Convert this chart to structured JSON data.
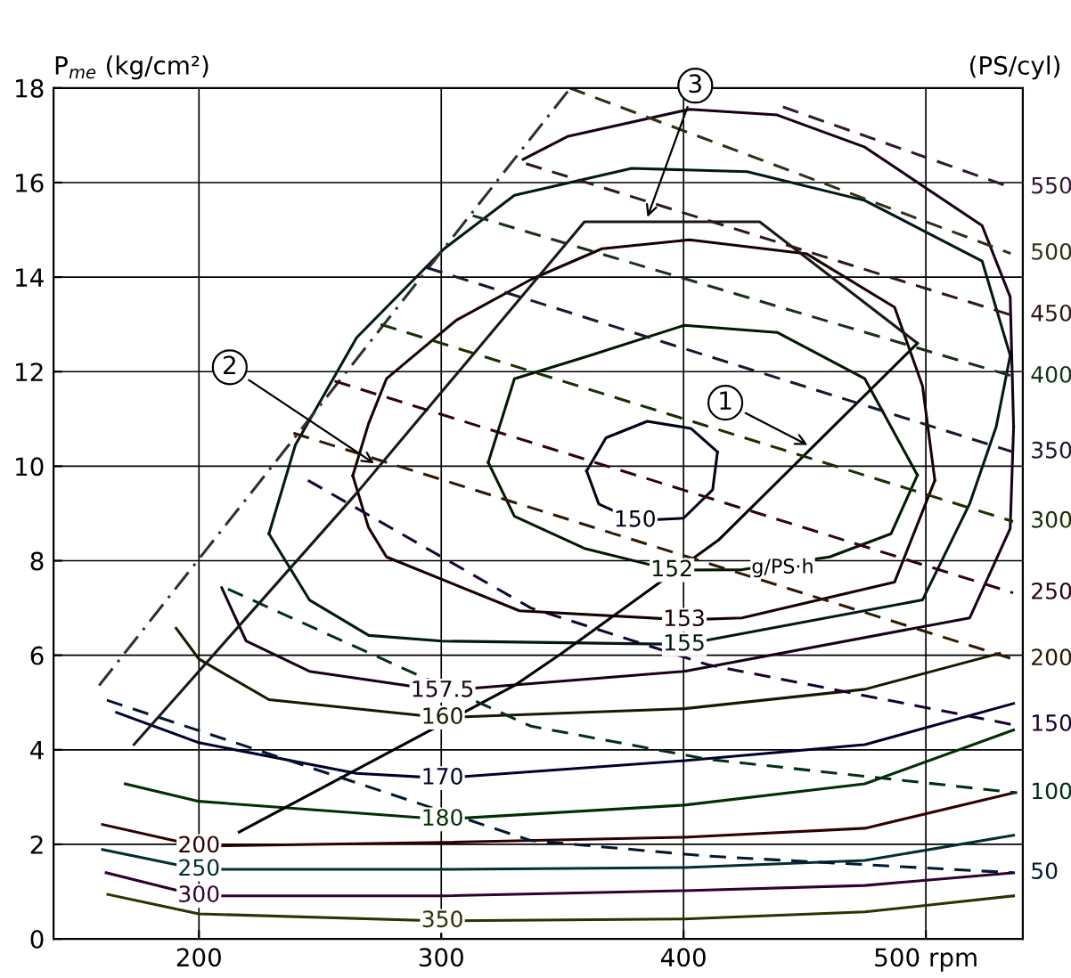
{
  "chart_data": {
    "type": "line",
    "ylabel": "P$_{me}$ (kg/cm²)",
    "y2label": "(PS/cyl)",
    "xlim": [
      140,
      540
    ],
    "xticks": [
      200,
      300,
      400,
      {
        "value": 500,
        "label": "500 rpm"
      }
    ],
    "ylim": [
      0,
      18
    ],
    "yticks": [
      0,
      2,
      4,
      6,
      8,
      10,
      12,
      14,
      16,
      18
    ],
    "grid": true,
    "series": [
      {
        "name": "150",
        "color": "#000018",
        "x": [
          360,
          365,
          380,
          400,
          412,
          414
        ],
        "values": [
          9.9,
          9.2,
          8.85,
          8.9,
          9.5,
          10.3
        ]
      },
      {
        "color": "#000018",
        "x": [
          360,
          368,
          385,
          403,
          414
        ],
        "values": [
          9.9,
          10.6,
          10.95,
          10.8,
          10.3
        ]
      },
      {
        "name": "152",
        "color": "#001800",
        "x": [
          319.4,
          330.2,
          359.1,
          395.2,
          424.1,
          460.3,
          485.6,
          496.5
        ],
        "values": [
          10.08,
          8.94,
          8.26,
          7.8,
          7.81,
          8.08,
          8.57,
          9.81
        ]
      },
      {
        "color": "#001800",
        "x": [
          319.4,
          330.2,
          361.2,
          400.3,
          438.6,
          474.8,
          496.5
        ],
        "values": [
          10.08,
          11.85,
          12.34,
          12.98,
          12.83,
          11.85,
          9.81
        ]
      },
      {
        "name": "153",
        "color": "#180000",
        "x": [
          263.5,
          270,
          277.4,
          332.3,
          400.3,
          424.1,
          487.1,
          503.7
        ],
        "values": [
          9.8,
          8.7,
          8.08,
          6.94,
          6.75,
          6.79,
          7.55,
          9.7
        ]
      },
      {
        "color": "#180000",
        "x": [
          263.5,
          270,
          277.4,
          306.3,
          337.4,
          366.3,
          402.5,
          450.9,
          487.1,
          498.6,
          503.7
        ],
        "values": [
          9.8,
          10.9,
          11.85,
          13.09,
          13.96,
          14.6,
          14.79,
          14.49,
          13.36,
          11.7,
          9.7
        ]
      },
      {
        "name": "155",
        "color": "#001818",
        "x": [
          228.9,
          245.6,
          270.1,
          300.5,
          400.3,
          498.6,
          518.1,
          529,
          534.8
        ],
        "values": [
          8.57,
          7.17,
          6.42,
          6.3,
          6.23,
          7.17,
          9.21,
          10.83,
          12.34
        ]
      },
      {
        "color": "#001818",
        "x": [
          228.9,
          239.8,
          265.1,
          301.2,
          330.2,
          378.6,
          426.3,
          474.8,
          523.2,
          534.8
        ],
        "values": [
          8.57,
          10.45,
          12.72,
          14.6,
          15.73,
          16.3,
          16.23,
          15.62,
          14.34,
          12.34
        ]
      },
      {
        "name": "157.5",
        "color": "#180018",
        "x": [
          209.4,
          219.5,
          245.6,
          300.5,
          400.3,
          518.1,
          534.8,
          536.2
        ],
        "values": [
          7.43,
          6.3,
          5.66,
          5.25,
          5.66,
          6.79,
          8.68,
          10.83
        ]
      },
      {
        "color": "#180018",
        "x": [
          333.8,
          352.4,
          402.5,
          438.6,
          474.8,
          523.2,
          534.8,
          536.2
        ],
        "values": [
          16.49,
          16.98,
          17.55,
          17.43,
          16.75,
          15.09,
          13.58,
          10.83
        ]
      },
      {
        "name": "160",
        "color": "#181800",
        "x": [
          190.6,
          200,
          228.9,
          300.5,
          400.3,
          474.8,
          530.4
        ],
        "values": [
          6.57,
          5.92,
          5.06,
          4.68,
          4.87,
          5.28,
          6.04
        ]
      },
      {
        "name": "170",
        "color": "#000030",
        "x": [
          166,
          200,
          265,
          300.5,
          400.3,
          474.8,
          536.2
        ],
        "values": [
          4.79,
          4.15,
          3.5,
          3.4,
          3.77,
          4.11,
          4.98
        ]
      },
      {
        "name": "180",
        "color": "#003000",
        "x": [
          169.6,
          200,
          300.5,
          400.3,
          474.8,
          536.2
        ],
        "values": [
          3.28,
          2.91,
          2.53,
          2.83,
          3.28,
          4.42
        ]
      },
      {
        "name": "200",
        "color": "#300000",
        "x": [
          160.2,
          200,
          300.5,
          400.3,
          474.8,
          536.2
        ],
        "values": [
          2.42,
          1.96,
          2.04,
          2.15,
          2.34,
          3.09
        ]
      },
      {
        "name": "250",
        "color": "#003030",
        "x": [
          160.2,
          200,
          300.5,
          400.3,
          474.8,
          536.2
        ],
        "values": [
          1.89,
          1.47,
          1.47,
          1.51,
          1.66,
          2.19
        ]
      },
      {
        "name": "300",
        "color": "#300030",
        "x": [
          161.7,
          200,
          300.5,
          400.3,
          474.8,
          536.2
        ],
        "values": [
          1.4,
          0.91,
          0.91,
          1.02,
          1.13,
          1.4
        ]
      },
      {
        "name": "350",
        "color": "#303000",
        "x": [
          162.4,
          200,
          300.5,
          400.3,
          474.8,
          536.2
        ],
        "values": [
          0.94,
          0.53,
          0.38,
          0.42,
          0.57,
          0.91
        ]
      },
      {
        "color": "#000000",
        "x": [
          216.6,
          330.2,
          349.7,
          414.7,
          496.5
        ],
        "values": [
          2.26,
          5.36,
          6.04,
          8.45,
          12.6
        ]
      },
      {
        "color": "#181818",
        "x": [
          173.2,
          265.1,
          359.1,
          431.4,
          496.5
        ],
        "values": [
          4.11,
          9.43,
          15.17,
          15.17,
          12.6
        ]
      },
      {
        "color": "#303030",
        "line_style": "dotted",
        "x": [
          158.8,
          353.3
        ],
        "values": [
          5.36,
          18.0
        ]
      },
      {
        "name": "50",
        "color": "#001830",
        "line_style": "dashed",
        "x": [
          162,
          337,
          410,
          536
        ],
        "values": [
          5.05,
          2.08,
          1.75,
          1.4
        ]
      },
      {
        "name": "100",
        "color": "#003018",
        "line_style": "dashed",
        "x": [
          212,
          337,
          410,
          537.7
        ],
        "values": [
          7.4,
          4.5,
          3.8,
          3.09
        ]
      },
      {
        "name": "150",
        "color": "#180030",
        "line_style": "dashed",
        "x": [
          245,
          337,
          410,
          536
        ],
        "values": [
          9.7,
          7.0,
          5.8,
          4.53
        ]
      },
      {
        "name": "200",
        "color": "#301800",
        "line_style": "dashed",
        "x": [
          239,
          536
        ],
        "values": [
          10.7,
          5.92
        ]
      },
      {
        "name": "250",
        "color": "#300018",
        "line_style": "dashed",
        "x": [
          256,
          536
        ],
        "values": [
          11.8,
          7.32
        ]
      },
      {
        "name": "300",
        "color": "#183000",
        "line_style": "dashed",
        "x": [
          275,
          536
        ],
        "values": [
          13.0,
          8.83
        ]
      },
      {
        "name": "350",
        "color": "#181830",
        "line_style": "dashed",
        "x": [
          294,
          536
        ],
        "values": [
          14.2,
          10.3
        ]
      },
      {
        "name": "400",
        "color": "#183018",
        "line_style": "dashed",
        "x": [
          313,
          536
        ],
        "values": [
          15.3,
          11.9
        ]
      },
      {
        "name": "450",
        "color": "#301818",
        "line_style": "dashed",
        "x": [
          335,
          535
        ],
        "values": [
          16.4,
          13.2
        ]
      },
      {
        "name": "500",
        "color": "#303018",
        "line_style": "dashed",
        "x": [
          353,
          535
        ],
        "values": [
          18.0,
          14.5
        ]
      },
      {
        "name": "550",
        "color": "#301830",
        "line_style": "dashed",
        "x": [
          441,
          535
        ],
        "values": [
          17.6,
          15.9
        ]
      }
    ],
    "annotations": [
      {
        "text": "1",
        "x": 453,
        "y": 10.4
      },
      {
        "text": "2",
        "x": 274,
        "y": 10.0
      },
      {
        "text": "3",
        "x": 384.4,
        "y": 15.17
      },
      {
        "text": "g/PS·h",
        "x": 428,
        "y": 7.85
      }
    ]
  }
}
